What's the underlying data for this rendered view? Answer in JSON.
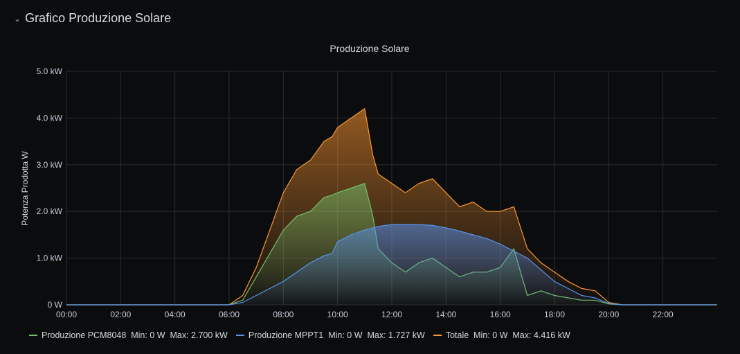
{
  "panel": {
    "row_title": "Grafico Produzione Solare"
  },
  "chart_data": {
    "type": "area",
    "title": "Produzione Solare",
    "ylabel": "Potenza Prodotta W",
    "xlabel": "",
    "ylim": [
      0,
      5
    ],
    "xlim_hours": [
      0,
      24
    ],
    "yticks": [
      "0 W",
      "1.0 kW",
      "2.0 kW",
      "3.0 kW",
      "4.0 kW",
      "5.0 kW"
    ],
    "xticks": [
      "00:00",
      "02:00",
      "04:00",
      "06:00",
      "08:00",
      "10:00",
      "12:00",
      "14:00",
      "16:00",
      "18:00",
      "20:00",
      "22:00"
    ],
    "grid": true,
    "legend_position": "bottom-left",
    "x_hours": [
      0,
      6,
      6.5,
      7,
      7.5,
      8,
      8.5,
      9,
      9.5,
      9.8,
      10,
      10.5,
      11,
      11.3,
      11.5,
      12,
      12.5,
      13,
      13.5,
      14,
      14.5,
      15,
      15.5,
      16,
      16.5,
      17,
      17.5,
      18,
      18.5,
      19,
      19.5,
      20,
      20.5,
      24
    ],
    "series": [
      {
        "name": "Produzione PCM8048",
        "legend": "Produzione PCM8048  Min: 0 W  Max: 2.700 kW",
        "color": "#73bf69",
        "values": [
          0,
          0,
          0.1,
          0.6,
          1.1,
          1.6,
          1.9,
          2.0,
          2.3,
          2.35,
          2.4,
          2.5,
          2.6,
          1.9,
          1.2,
          0.9,
          0.7,
          0.9,
          1.0,
          0.8,
          0.6,
          0.7,
          0.7,
          0.8,
          1.2,
          0.2,
          0.3,
          0.2,
          0.15,
          0.1,
          0.1,
          0.02,
          0,
          0
        ]
      },
      {
        "name": "Produzione MPPT1",
        "legend": "Produzione MPPT1  Min: 0 W  Max: 1.727 kW",
        "color": "#5794f2",
        "values": [
          0,
          0,
          0.05,
          0.2,
          0.35,
          0.5,
          0.7,
          0.9,
          1.05,
          1.1,
          1.35,
          1.5,
          1.6,
          1.65,
          1.68,
          1.72,
          1.72,
          1.72,
          1.7,
          1.65,
          1.58,
          1.5,
          1.42,
          1.3,
          1.15,
          1.0,
          0.75,
          0.5,
          0.35,
          0.2,
          0.15,
          0.03,
          0,
          0
        ]
      },
      {
        "name": "Totale",
        "legend": "Totale  Min: 0 W  Max: 4.416 kW",
        "color": "#ff9830",
        "values": [
          0,
          0,
          0.2,
          0.8,
          1.6,
          2.4,
          2.9,
          3.1,
          3.5,
          3.6,
          3.8,
          4.0,
          4.2,
          3.2,
          2.8,
          2.6,
          2.4,
          2.6,
          2.7,
          2.4,
          2.1,
          2.2,
          2.0,
          2.0,
          2.1,
          1.2,
          0.9,
          0.7,
          0.5,
          0.35,
          0.3,
          0.05,
          0,
          0
        ]
      }
    ]
  }
}
